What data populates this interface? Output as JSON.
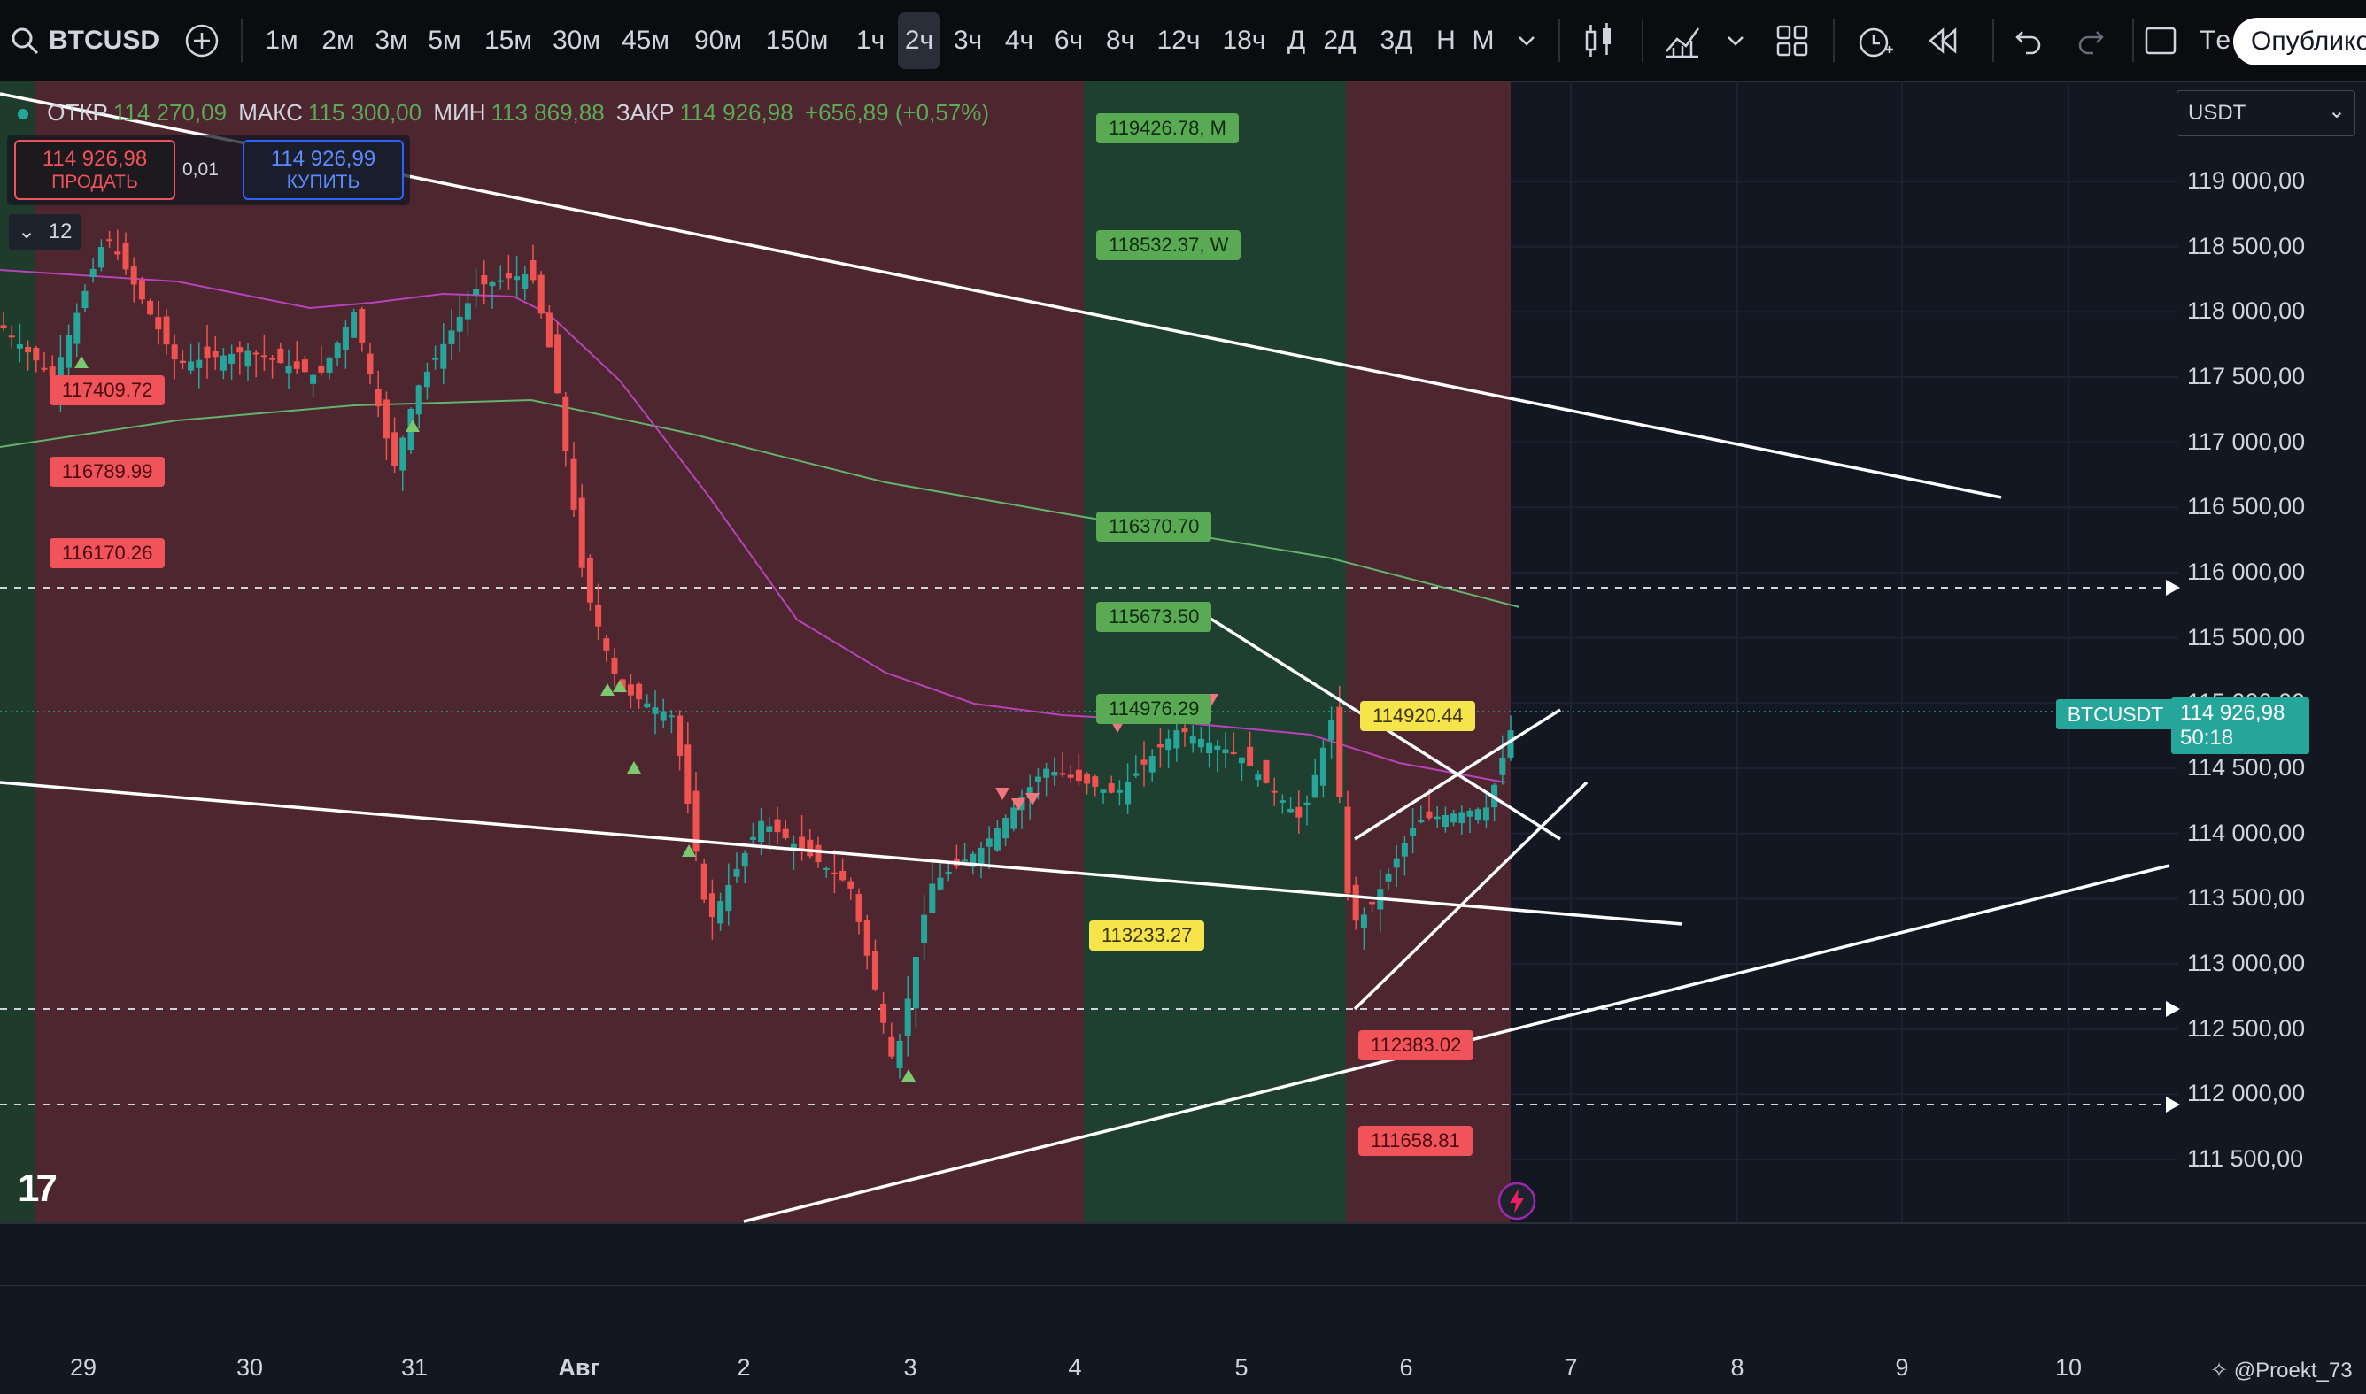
{
  "toolbar": {
    "symbol": "BTCUSD",
    "intervals": [
      "1м",
      "2м",
      "3м",
      "5м",
      "15м",
      "30м",
      "45м",
      "90м",
      "150м",
      "1ч",
      "2ч",
      "3ч",
      "4ч",
      "6ч",
      "8ч",
      "12ч",
      "18ч",
      "Д",
      "2Д",
      "3Д",
      "Н",
      "М"
    ],
    "selected_interval": "2ч",
    "partial_label": "Тe",
    "publish_label": "Опублико"
  },
  "legend": {
    "open_label": "ОТКР",
    "open": "114 270,09",
    "high_label": "МАКС",
    "high": "115 300,00",
    "low_label": "МИН",
    "low": "113 869,88",
    "close_label": "ЗАКР",
    "close": "114 926,98",
    "change": "+656,89 (+0,57%)"
  },
  "trade": {
    "sell_price": "114 926,98",
    "sell_label": "ПРОДАТЬ",
    "spread": "0,01",
    "buy_price": "114 926,99",
    "buy_label": "КУПИТЬ",
    "indicators_count": "12"
  },
  "currency_select": "USDT",
  "price_axis": [
    "119 000,00",
    "118 500,00",
    "118 000,00",
    "117 500,00",
    "117 000,00",
    "116 500,00",
    "116 000,00",
    "115 500,00",
    "115 000,00",
    "114 500,00",
    "114 000,00",
    "113 500,00",
    "113 000,00",
    "112 500,00",
    "112 000,00",
    "111 500,00"
  ],
  "current_price": {
    "symbol_tag": "BTCUSDT",
    "price": "114 926,98",
    "countdown": "50:18"
  },
  "level_labels": {
    "l1": "117409.72",
    "l2": "116789.99",
    "l3": "116170.26",
    "m": "119426.78, M",
    "w": "118532.37, W",
    "g1": "116370.70",
    "g2": "115673.50",
    "g3": "114976.29",
    "y1": "114920.44",
    "y2": "113233.27",
    "r1": "112383.02",
    "r2": "111658.81"
  },
  "time_axis": [
    "29",
    "30",
    "31",
    "Авг",
    "2",
    "3",
    "4",
    "5",
    "6",
    "7",
    "8",
    "9",
    "10"
  ],
  "watermark": "@Proekt_73",
  "logo_text": "17",
  "colors": {
    "up": "#26a69a",
    "down": "#ef5350",
    "red_zone": "#5c2a33",
    "green_zone": "#234a33"
  }
}
